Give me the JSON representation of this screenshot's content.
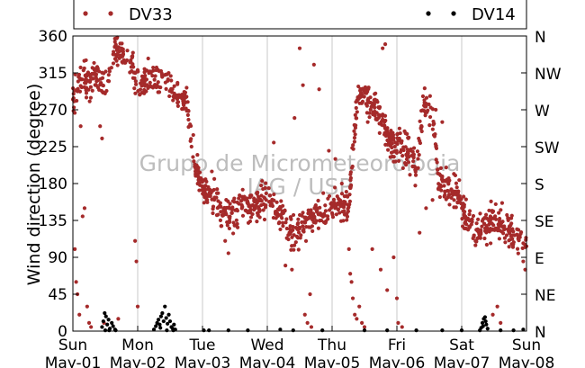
{
  "chart_data": {
    "type": "scatter",
    "ylabel": "Wind direction (degree)",
    "xlabel": "",
    "ylim": [
      0,
      360
    ],
    "xlim": [
      0,
      7
    ],
    "yticks": [
      0,
      45,
      90,
      135,
      180,
      225,
      270,
      315,
      360
    ],
    "right_ticks": [
      "N",
      "NE",
      "E",
      "SE",
      "S",
      "SW",
      "W",
      "NW",
      "N"
    ],
    "right_tick_values": [
      0,
      45,
      90,
      135,
      180,
      225,
      270,
      315,
      360
    ],
    "x_ticks": [
      {
        "day": "Sun",
        "date": "May-01"
      },
      {
        "day": "Mon",
        "date": "May-02"
      },
      {
        "day": "Tue",
        "date": "May-03"
      },
      {
        "day": "Wed",
        "date": "May-04"
      },
      {
        "day": "Thu",
        "date": "May-05"
      },
      {
        "day": "Fri",
        "date": "May-06"
      },
      {
        "day": "Sat",
        "date": "May-07"
      },
      {
        "day": "Sun",
        "date": "May-08"
      }
    ],
    "watermark": [
      "Grupo de Micrometeorologia",
      "IAG / USP"
    ],
    "grid": "vertical",
    "legend_position": "top",
    "series": [
      {
        "name": "DV33",
        "color": "#a52a2a",
        "trend": [
          [
            0.0,
            280
          ],
          [
            0.08,
            300
          ],
          [
            0.2,
            305
          ],
          [
            0.35,
            310
          ],
          [
            0.5,
            300
          ],
          [
            0.62,
            345
          ],
          [
            0.75,
            340
          ],
          [
            0.9,
            330
          ],
          [
            1.0,
            300
          ],
          [
            1.15,
            305
          ],
          [
            1.3,
            310
          ],
          [
            1.45,
            305
          ],
          [
            1.6,
            290
          ],
          [
            1.75,
            280
          ],
          [
            1.85,
            210
          ],
          [
            2.0,
            175
          ],
          [
            2.15,
            165
          ],
          [
            2.3,
            145
          ],
          [
            2.45,
            140
          ],
          [
            2.6,
            160
          ],
          [
            2.75,
            150
          ],
          [
            2.9,
            155
          ],
          [
            3.0,
            160
          ],
          [
            3.15,
            145
          ],
          [
            3.3,
            130
          ],
          [
            3.45,
            120
          ],
          [
            3.6,
            135
          ],
          [
            3.75,
            145
          ],
          [
            3.9,
            140
          ],
          [
            4.0,
            150
          ],
          [
            4.1,
            155
          ],
          [
            4.25,
            150
          ],
          [
            4.4,
            290
          ],
          [
            4.55,
            285
          ],
          [
            4.7,
            265
          ],
          [
            4.85,
            240
          ],
          [
            4.95,
            220
          ],
          [
            5.05,
            230
          ],
          [
            5.2,
            215
          ],
          [
            5.3,
            200
          ],
          [
            5.4,
            280
          ],
          [
            5.55,
            270
          ],
          [
            5.65,
            175
          ],
          [
            5.8,
            175
          ],
          [
            5.95,
            165
          ],
          [
            6.05,
            140
          ],
          [
            6.2,
            120
          ],
          [
            6.35,
            125
          ],
          [
            6.5,
            135
          ],
          [
            6.65,
            130
          ],
          [
            6.8,
            115
          ],
          [
            7.0,
            100
          ]
        ],
        "spread": 14,
        "count": 1250,
        "outliers": [
          [
            0.03,
            100
          ],
          [
            0.05,
            60
          ],
          [
            0.07,
            45
          ],
          [
            0.1,
            20
          ],
          [
            0.12,
            250
          ],
          [
            0.15,
            140
          ],
          [
            0.18,
            150
          ],
          [
            0.22,
            30
          ],
          [
            0.25,
            10
          ],
          [
            0.28,
            5
          ],
          [
            0.42,
            250
          ],
          [
            0.45,
            235
          ],
          [
            0.48,
            10
          ],
          [
            0.96,
            110
          ],
          [
            0.98,
            85
          ],
          [
            1.0,
            30
          ],
          [
            0.7,
            15
          ],
          [
            1.1,
            290
          ],
          [
            2.35,
            110
          ],
          [
            2.4,
            95
          ],
          [
            3.1,
            230
          ],
          [
            3.28,
            80
          ],
          [
            3.38,
            75
          ],
          [
            3.42,
            260
          ],
          [
            3.5,
            345
          ],
          [
            3.55,
            300
          ],
          [
            3.58,
            20
          ],
          [
            3.62,
            10
          ],
          [
            3.66,
            45
          ],
          [
            3.68,
            5
          ],
          [
            3.72,
            325
          ],
          [
            3.8,
            295
          ],
          [
            3.95,
            220
          ],
          [
            4.05,
            210
          ],
          [
            4.15,
            180
          ],
          [
            4.22,
            170
          ],
          [
            4.26,
            100
          ],
          [
            4.28,
            70
          ],
          [
            4.3,
            60
          ],
          [
            4.32,
            40
          ],
          [
            4.35,
            20
          ],
          [
            4.38,
            15
          ],
          [
            4.42,
            30
          ],
          [
            4.46,
            10
          ],
          [
            4.5,
            5
          ],
          [
            4.55,
            255
          ],
          [
            4.62,
            100
          ],
          [
            4.75,
            75
          ],
          [
            4.85,
            50
          ],
          [
            4.95,
            90
          ],
          [
            5.0,
            40
          ],
          [
            5.35,
            120
          ],
          [
            5.45,
            150
          ],
          [
            5.55,
            160
          ],
          [
            5.6,
            270
          ],
          [
            5.7,
            255
          ],
          [
            6.48,
            20
          ],
          [
            6.55,
            30
          ],
          [
            6.6,
            10
          ],
          [
            6.95,
            85
          ],
          [
            6.98,
            75
          ],
          [
            5.02,
            10
          ],
          [
            5.08,
            5
          ],
          [
            4.78,
            345
          ],
          [
            4.82,
            350
          ]
        ]
      },
      {
        "name": "DV14",
        "color": "#000000",
        "points": [
          [
            0.45,
            5
          ],
          [
            0.47,
            12
          ],
          [
            0.49,
            22
          ],
          [
            0.51,
            18
          ],
          [
            0.53,
            8
          ],
          [
            0.55,
            14
          ],
          [
            0.57,
            3
          ],
          [
            0.6,
            10
          ],
          [
            0.62,
            6
          ],
          [
            0.65,
            2
          ],
          [
            0.5,
            1
          ],
          [
            0.56,
            1
          ],
          [
            0.66,
            1
          ],
          [
            1.25,
            2
          ],
          [
            1.28,
            6
          ],
          [
            1.3,
            10
          ],
          [
            1.32,
            14
          ],
          [
            1.34,
            8
          ],
          [
            1.36,
            18
          ],
          [
            1.38,
            22
          ],
          [
            1.4,
            12
          ],
          [
            1.42,
            30
          ],
          [
            1.44,
            16
          ],
          [
            1.46,
            9
          ],
          [
            1.48,
            20
          ],
          [
            1.5,
            12
          ],
          [
            1.52,
            5
          ],
          [
            1.54,
            3
          ],
          [
            1.56,
            8
          ],
          [
            1.58,
            2
          ],
          [
            1.35,
            4
          ],
          [
            1.45,
            1
          ],
          [
            1.55,
            1
          ],
          [
            2.02,
            1
          ],
          [
            2.1,
            1
          ],
          [
            2.4,
            1
          ],
          [
            2.7,
            1
          ],
          [
            3.2,
            2
          ],
          [
            3.4,
            1
          ],
          [
            3.85,
            1
          ],
          [
            4.5,
            1
          ],
          [
            4.85,
            1
          ],
          [
            5.3,
            1
          ],
          [
            5.7,
            1
          ],
          [
            6.0,
            1
          ],
          [
            6.28,
            1
          ],
          [
            6.3,
            4
          ],
          [
            6.32,
            10
          ],
          [
            6.34,
            15
          ],
          [
            6.36,
            17
          ],
          [
            6.38,
            8
          ],
          [
            6.4,
            3
          ],
          [
            6.33,
            6
          ],
          [
            6.37,
            12
          ],
          [
            6.6,
            1
          ],
          [
            6.8,
            1
          ],
          [
            6.95,
            2
          ]
        ]
      }
    ]
  }
}
